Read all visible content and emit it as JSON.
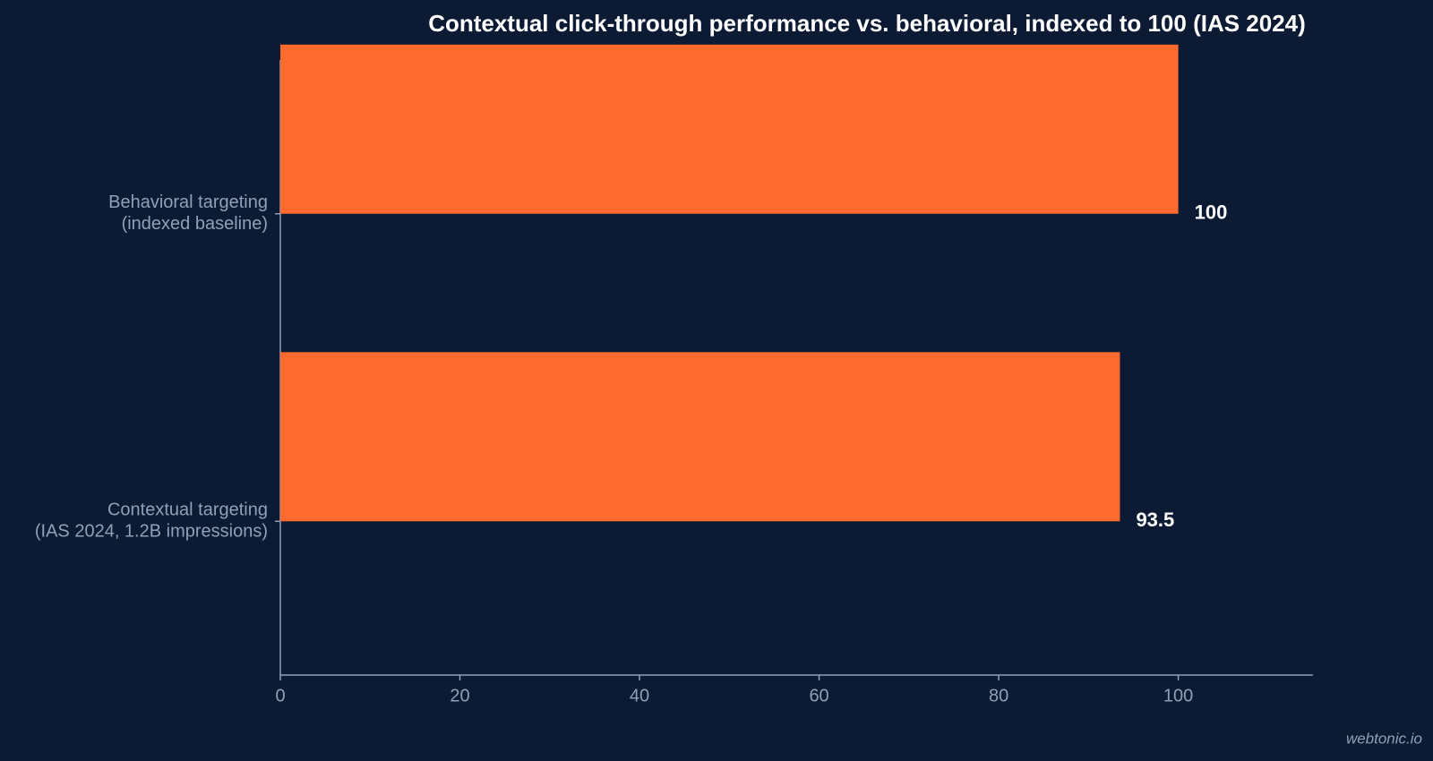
{
  "chart_data": {
    "type": "barh",
    "title": "Contextual click-through performance vs. behavioral, indexed to 100 (IAS 2024)",
    "categories": [
      [
        "Behavioral targeting",
        "(indexed baseline)"
      ],
      [
        "Contextual targeting",
        "(IAS 2024, 1.2B impressions)"
      ]
    ],
    "values": [
      100,
      93.5
    ],
    "color": "#ff6b2f",
    "xlim": [
      0,
      115
    ],
    "xticks": [
      0,
      20,
      40,
      60,
      80,
      100
    ],
    "grid": false,
    "watermark": "webtonic.io"
  }
}
